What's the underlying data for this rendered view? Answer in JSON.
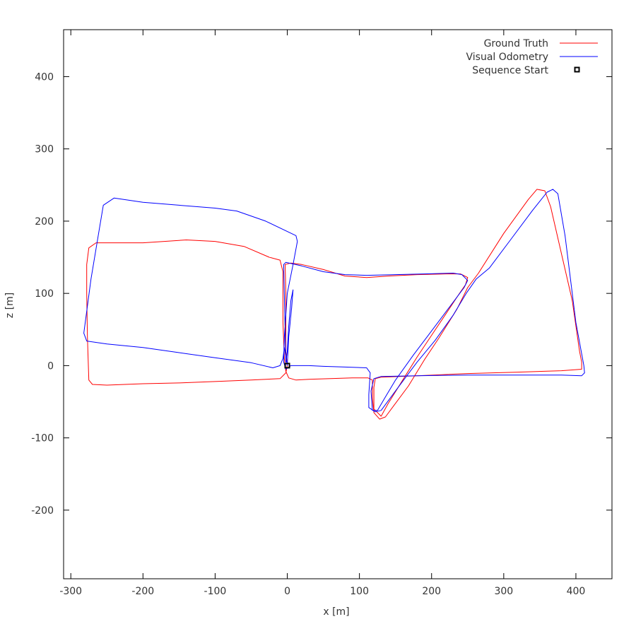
{
  "chart_data": {
    "type": "line",
    "xlabel": "x [m]",
    "ylabel": "z [m]",
    "xlim": [
      -310,
      450
    ],
    "ylim": [
      -295,
      465
    ],
    "xticks": [
      -300,
      -200,
      -100,
      0,
      100,
      200,
      300,
      400
    ],
    "yticks": [
      -200,
      -100,
      0,
      100,
      200,
      300,
      400
    ],
    "grid": false,
    "legend": {
      "placement": "top-right",
      "entries": [
        {
          "label": "Ground Truth",
          "color": "#ff0000",
          "marker": "line"
        },
        {
          "label": "Visual Odometry",
          "color": "#0000ff",
          "marker": "line"
        },
        {
          "label": "Sequence Start",
          "color": "#000000",
          "marker": "square"
        }
      ]
    },
    "series": [
      {
        "name": "Ground Truth",
        "color": "#ff0000",
        "points": [
          [
            0,
            0
          ],
          [
            -2,
            20
          ],
          [
            -2,
            100
          ],
          [
            -3,
            140
          ],
          [
            5,
            142
          ],
          [
            20,
            140
          ],
          [
            50,
            133
          ],
          [
            80,
            124
          ],
          [
            110,
            122
          ],
          [
            140,
            124
          ],
          [
            180,
            126
          ],
          [
            220,
            127
          ],
          [
            240,
            127
          ],
          [
            250,
            122
          ],
          [
            247,
            112
          ],
          [
            240,
            102
          ],
          [
            220,
            72
          ],
          [
            200,
            42
          ],
          [
            180,
            12
          ],
          [
            160,
            -20
          ],
          [
            140,
            -52
          ],
          [
            130,
            -70
          ],
          [
            120,
            -60
          ],
          [
            120,
            -30
          ],
          [
            122,
            -18
          ],
          [
            130,
            -16
          ],
          [
            180,
            -14
          ],
          [
            250,
            -11
          ],
          [
            320,
            -9
          ],
          [
            380,
            -7
          ],
          [
            408,
            -5
          ],
          [
            408,
            5
          ],
          [
            405,
            20
          ],
          [
            395,
            90
          ],
          [
            365,
            220
          ],
          [
            357,
            242
          ],
          [
            346,
            244
          ],
          [
            334,
            230
          ],
          [
            300,
            183
          ],
          [
            265,
            128
          ],
          [
            250,
            108
          ],
          [
            235,
            78
          ],
          [
            210,
            38
          ],
          [
            190,
            8
          ],
          [
            168,
            -28
          ],
          [
            148,
            -55
          ],
          [
            136,
            -71
          ],
          [
            128,
            -74
          ],
          [
            120,
            -65
          ],
          [
            118,
            -45
          ],
          [
            118,
            -20
          ],
          [
            112,
            -17
          ],
          [
            90,
            -17
          ],
          [
            60,
            -18
          ],
          [
            30,
            -19
          ],
          [
            12,
            -20
          ],
          [
            2,
            -17
          ],
          [
            -2,
            -8
          ],
          [
            -4,
            10
          ],
          [
            -6,
            60
          ],
          [
            -6,
            130
          ],
          [
            -10,
            146
          ],
          [
            -25,
            150
          ],
          [
            -60,
            165
          ],
          [
            -100,
            172
          ],
          [
            -140,
            174
          ],
          [
            -200,
            170
          ],
          [
            -265,
            170
          ],
          [
            -275,
            163
          ],
          [
            -278,
            140
          ],
          [
            -278,
            100
          ],
          [
            -277,
            40
          ],
          [
            -275,
            -20
          ],
          [
            -270,
            -26
          ],
          [
            -250,
            -27
          ],
          [
            -200,
            -25
          ],
          [
            -150,
            -24
          ],
          [
            -100,
            -22
          ],
          [
            -50,
            -20
          ],
          [
            -10,
            -18
          ],
          [
            -2,
            -10
          ],
          [
            0,
            0
          ]
        ]
      },
      {
        "name": "Visual Odometry",
        "color": "#0000ff",
        "points": [
          [
            0,
            0
          ],
          [
            2,
            40
          ],
          [
            6,
            80
          ],
          [
            8,
            105
          ],
          [
            5,
            90
          ],
          [
            2,
            55
          ],
          [
            0,
            20
          ],
          [
            -2,
            5
          ],
          [
            -5,
            140
          ],
          [
            -2,
            143
          ],
          [
            20,
            138
          ],
          [
            50,
            130
          ],
          [
            80,
            126
          ],
          [
            110,
            125
          ],
          [
            150,
            126
          ],
          [
            190,
            127
          ],
          [
            230,
            128
          ],
          [
            242,
            126
          ],
          [
            250,
            118
          ],
          [
            245,
            108
          ],
          [
            230,
            88
          ],
          [
            200,
            48
          ],
          [
            175,
            15
          ],
          [
            150,
            -20
          ],
          [
            135,
            -45
          ],
          [
            125,
            -62
          ],
          [
            118,
            -62
          ],
          [
            116,
            -35
          ],
          [
            120,
            -18
          ],
          [
            130,
            -15
          ],
          [
            180,
            -14
          ],
          [
            250,
            -13
          ],
          [
            320,
            -13
          ],
          [
            380,
            -13
          ],
          [
            408,
            -14
          ],
          [
            412,
            -10
          ],
          [
            411,
            0
          ],
          [
            400,
            60
          ],
          [
            385,
            180
          ],
          [
            375,
            238
          ],
          [
            368,
            244
          ],
          [
            360,
            240
          ],
          [
            340,
            215
          ],
          [
            310,
            175
          ],
          [
            280,
            135
          ],
          [
            262,
            120
          ],
          [
            248,
            100
          ],
          [
            230,
            70
          ],
          [
            205,
            35
          ],
          [
            180,
            5
          ],
          [
            165,
            -15
          ],
          [
            150,
            -35
          ],
          [
            130,
            -62
          ],
          [
            122,
            -64
          ],
          [
            113,
            -58
          ],
          [
            113,
            -40
          ],
          [
            115,
            -10
          ],
          [
            110,
            -3
          ],
          [
            80,
            -2
          ],
          [
            50,
            -1
          ],
          [
            30,
            0
          ],
          [
            5,
            0
          ],
          [
            -2,
            -5
          ],
          [
            -5,
            5
          ],
          [
            -4,
            40
          ],
          [
            0,
            100
          ],
          [
            8,
            140
          ],
          [
            14,
            172
          ],
          [
            12,
            180
          ],
          [
            -30,
            200
          ],
          [
            -70,
            214
          ],
          [
            -100,
            218
          ],
          [
            -150,
            222
          ],
          [
            -200,
            226
          ],
          [
            -240,
            232
          ],
          [
            -255,
            222
          ],
          [
            -262,
            180
          ],
          [
            -272,
            120
          ],
          [
            -282,
            45
          ],
          [
            -278,
            34
          ],
          [
            -250,
            30
          ],
          [
            -200,
            25
          ],
          [
            -150,
            18
          ],
          [
            -100,
            11
          ],
          [
            -50,
            4
          ],
          [
            -20,
            -3
          ],
          [
            -10,
            0
          ],
          [
            -6,
            10
          ],
          [
            -4,
            25
          ],
          [
            0,
            0
          ]
        ]
      }
    ],
    "markers": [
      {
        "name": "Sequence Start",
        "x": 0,
        "z": 0
      }
    ]
  }
}
